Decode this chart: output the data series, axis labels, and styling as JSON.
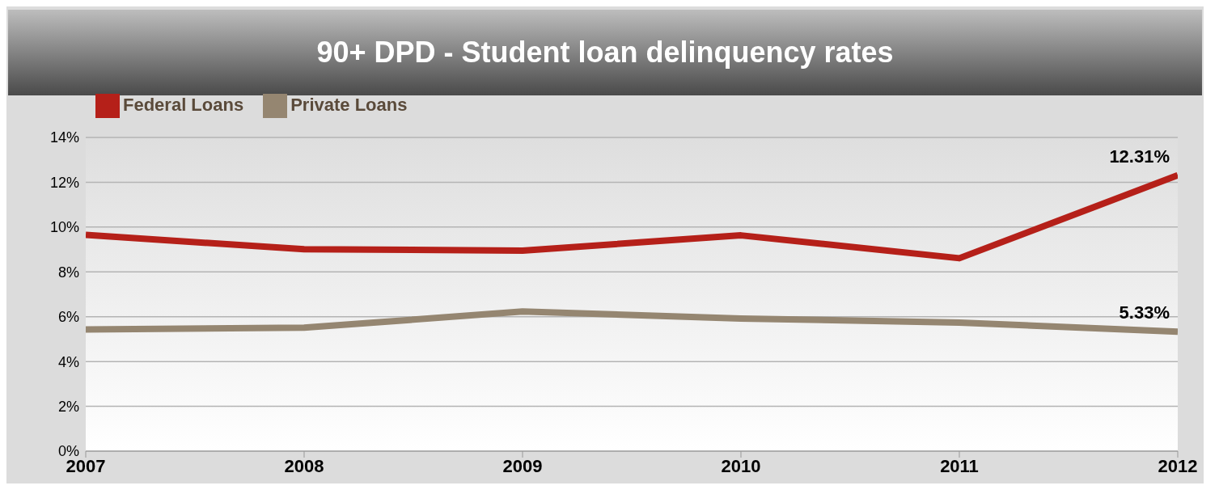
{
  "chart_data": {
    "type": "line",
    "title": "90+ DPD - Student loan delinquency rates",
    "x": [
      2007,
      2008,
      2009,
      2010,
      2011,
      2012
    ],
    "xlim": [
      2007,
      2012
    ],
    "xticks": [
      2007,
      2008,
      2009,
      2010,
      2011,
      2012
    ],
    "ylim": [
      0,
      14
    ],
    "yticks": [
      {
        "value": 0,
        "label": "0%"
      },
      {
        "value": 2,
        "label": "2%"
      },
      {
        "value": 4,
        "label": "4%"
      },
      {
        "value": 6,
        "label": "6%"
      },
      {
        "value": 8,
        "label": "8%"
      },
      {
        "value": 10,
        "label": "10%"
      },
      {
        "value": 12,
        "label": "12%"
      },
      {
        "value": 14,
        "label": "14%"
      }
    ],
    "grid": "y",
    "legend": "top left",
    "marker": "none",
    "line_style": "solid",
    "series": [
      {
        "name": "Federal Loans",
        "color": "#b52019",
        "values": [
          9.65,
          9.01,
          8.95,
          9.63,
          8.61,
          12.31
        ],
        "value_labels": [
          null,
          null,
          null,
          null,
          null,
          "12.31%"
        ]
      },
      {
        "name": "Private Loans",
        "color": "#958671",
        "values": [
          5.43,
          5.51,
          6.23,
          5.92,
          5.74,
          5.33
        ],
        "value_labels": [
          null,
          null,
          null,
          null,
          null,
          "5.33%"
        ]
      }
    ]
  }
}
